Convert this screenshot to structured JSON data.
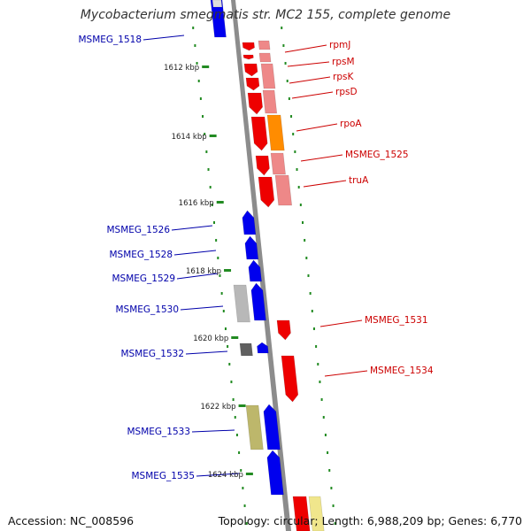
{
  "title": "Mycobacterium smegmatis str. MC2 155, complete genome",
  "footer": {
    "accession": "Accession: NC_008596",
    "topology": "Topology: circular; Length: 6,988,209 bp; Genes: 6,770"
  },
  "colors": {
    "forward_gene": "#0000ee",
    "reverse_gene": "#ee0000",
    "reverse_gene_light": "#ee8888",
    "orange_gene": "#ff8c00",
    "grey_gene": "#b8b8b8",
    "dark_grey_gene": "#606060",
    "khaki_gene": "#bdb76b",
    "yellow_gene": "#f0e68c",
    "backbone": "#8c8c8c",
    "tick_marks": "#228b22",
    "forward_label": "#0000aa",
    "reverse_label": "#cc0000"
  },
  "ticks": [
    {
      "label": "1612 kbp"
    },
    {
      "label": "1614 kbp"
    },
    {
      "label": "1616 kbp"
    },
    {
      "label": "1618 kbp"
    },
    {
      "label": "1620 kbp"
    },
    {
      "label": "1622 kbp"
    },
    {
      "label": "1624 kbp"
    }
  ],
  "forward_labels": [
    {
      "text": "MSMEG_1518"
    },
    {
      "text": "MSMEG_1526"
    },
    {
      "text": "MSMEG_1528"
    },
    {
      "text": "MSMEG_1529"
    },
    {
      "text": "MSMEG_1530"
    },
    {
      "text": "MSMEG_1532"
    },
    {
      "text": "MSMEG_1533"
    },
    {
      "text": "MSMEG_1535"
    }
  ],
  "reverse_labels": [
    {
      "text": "rpmJ"
    },
    {
      "text": "rpsM"
    },
    {
      "text": "rpsK"
    },
    {
      "text": "rpsD"
    },
    {
      "text": "rpoA"
    },
    {
      "text": "MSMEG_1525"
    },
    {
      "text": "truA"
    },
    {
      "text": "MSMEG_1531"
    },
    {
      "text": "MSMEG_1534"
    }
  ]
}
